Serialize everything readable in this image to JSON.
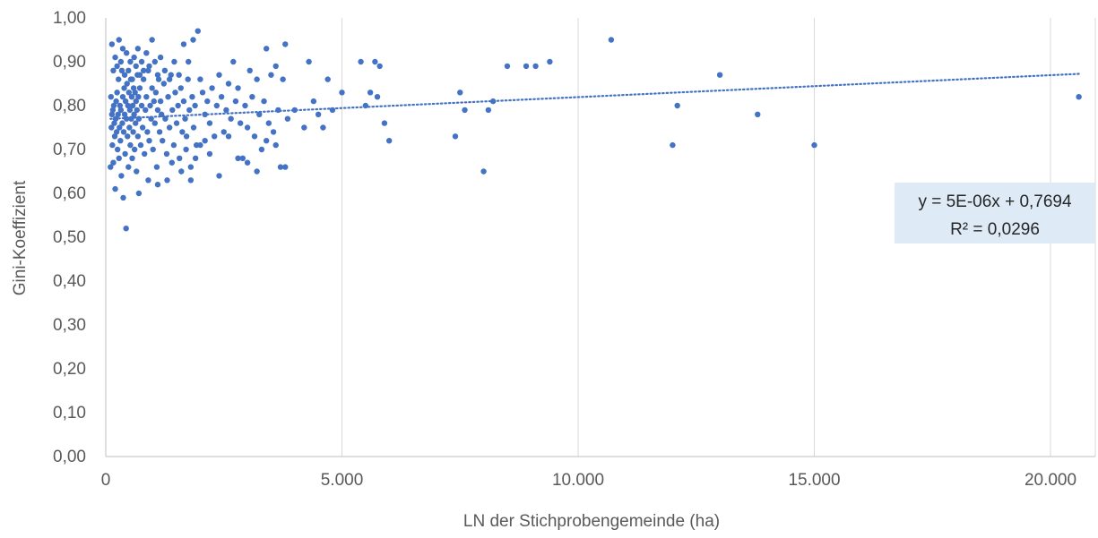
{
  "chart_data": {
    "type": "scatter",
    "title": "",
    "xlabel": "LN der Stichprobengemeinde (ha)",
    "ylabel": "Gini-Koeffizient",
    "xlim": [
      0,
      20000
    ],
    "ylim": [
      0,
      1
    ],
    "x_ticks": [
      {
        "value": 0,
        "label": "0"
      },
      {
        "value": 5000,
        "label": "5.000"
      },
      {
        "value": 10000,
        "label": "10.000"
      },
      {
        "value": 15000,
        "label": "15.000"
      },
      {
        "value": 20000,
        "label": "20.000"
      }
    ],
    "y_ticks": [
      {
        "value": 0.0,
        "label": "0,00"
      },
      {
        "value": 0.1,
        "label": "0,10"
      },
      {
        "value": 0.2,
        "label": "0,20"
      },
      {
        "value": 0.3,
        "label": "0,30"
      },
      {
        "value": 0.4,
        "label": "0,40"
      },
      {
        "value": 0.5,
        "label": "0,50"
      },
      {
        "value": 0.6,
        "label": "0,60"
      },
      {
        "value": 0.7,
        "label": "0,70"
      },
      {
        "value": 0.8,
        "label": "0,80"
      },
      {
        "value": 0.9,
        "label": "0,90"
      },
      {
        "value": 1.0,
        "label": "1,00"
      }
    ],
    "grid": "vertical",
    "marker_color": "#4472C4",
    "trendline": {
      "type": "linear",
      "slope": 5e-06,
      "intercept": 0.7694,
      "x_range": [
        100,
        20600
      ],
      "style": "dotted",
      "color": "#4472C4",
      "equation_label": "y = 5E-06x + 0,7694",
      "r2_label": "R² = 0,0296"
    },
    "points": [
      [
        100,
        0.66
      ],
      [
        110,
        0.82
      ],
      [
        120,
        0.75
      ],
      [
        130,
        0.78
      ],
      [
        140,
        0.71
      ],
      [
        150,
        0.79
      ],
      [
        160,
        0.67
      ],
      [
        170,
        0.8
      ],
      [
        180,
        0.76
      ],
      [
        190,
        0.73
      ],
      [
        200,
        0.61
      ],
      [
        210,
        0.77
      ],
      [
        220,
        0.81
      ],
      [
        230,
        0.74
      ],
      [
        240,
        0.83
      ],
      [
        250,
        0.7
      ],
      [
        260,
        0.78
      ],
      [
        270,
        0.86
      ],
      [
        280,
        0.68
      ],
      [
        290,
        0.75
      ],
      [
        300,
        0.8
      ],
      [
        310,
        0.72
      ],
      [
        320,
        0.79
      ],
      [
        330,
        0.64
      ],
      [
        340,
        0.88
      ],
      [
        350,
        0.76
      ],
      [
        360,
        0.82
      ],
      [
        370,
        0.59
      ],
      [
        380,
        0.74
      ],
      [
        390,
        0.84
      ],
      [
        400,
        0.78
      ],
      [
        410,
        0.69
      ],
      [
        420,
        0.81
      ],
      [
        430,
        0.52
      ],
      [
        440,
        0.77
      ],
      [
        450,
        0.85
      ],
      [
        460,
        0.73
      ],
      [
        470,
        0.8
      ],
      [
        480,
        0.66
      ],
      [
        490,
        0.83
      ],
      [
        500,
        0.75
      ],
      [
        510,
        0.79
      ],
      [
        520,
        0.71
      ],
      [
        530,
        0.86
      ],
      [
        540,
        0.77
      ],
      [
        550,
        0.82
      ],
      [
        560,
        0.68
      ],
      [
        570,
        0.8
      ],
      [
        580,
        0.74
      ],
      [
        590,
        0.84
      ],
      [
        600,
        0.78
      ],
      [
        610,
        0.7
      ],
      [
        620,
        0.83
      ],
      [
        630,
        0.76
      ],
      [
        640,
        0.81
      ],
      [
        650,
        0.65
      ],
      [
        660,
        0.79
      ],
      [
        670,
        0.87
      ],
      [
        680,
        0.73
      ],
      [
        690,
        0.82
      ],
      [
        700,
        0.77
      ],
      [
        720,
        0.84
      ],
      [
        740,
        0.71
      ],
      [
        760,
        0.8
      ],
      [
        780,
        0.75
      ],
      [
        800,
        0.86
      ],
      [
        820,
        0.69
      ],
      [
        840,
        0.79
      ],
      [
        860,
        0.82
      ],
      [
        880,
        0.74
      ],
      [
        900,
        0.88
      ],
      [
        920,
        0.72
      ],
      [
        940,
        0.8
      ],
      [
        960,
        0.77
      ],
      [
        980,
        0.84
      ],
      [
        1000,
        0.7
      ],
      [
        1020,
        0.81
      ],
      [
        1040,
        0.76
      ],
      [
        1060,
        0.83
      ],
      [
        1080,
        0.66
      ],
      [
        1100,
        0.79
      ],
      [
        1120,
        0.86
      ],
      [
        1140,
        0.74
      ],
      [
        1160,
        0.81
      ],
      [
        1180,
        0.78
      ],
      [
        1200,
        0.72
      ],
      [
        1230,
        0.85
      ],
      [
        1260,
        0.77
      ],
      [
        1290,
        0.69
      ],
      [
        1320,
        0.82
      ],
      [
        1350,
        0.75
      ],
      [
        1380,
        0.87
      ],
      [
        1410,
        0.79
      ],
      [
        1440,
        0.71
      ],
      [
        1470,
        0.83
      ],
      [
        1500,
        0.76
      ],
      [
        1530,
        0.8
      ],
      [
        1560,
        0.68
      ],
      [
        1590,
        0.84
      ],
      [
        1620,
        0.74
      ],
      [
        1650,
        0.81
      ],
      [
        1680,
        0.77
      ],
      [
        1710,
        0.73
      ],
      [
        1740,
        0.86
      ],
      [
        1770,
        0.79
      ],
      [
        1800,
        0.66
      ],
      [
        1830,
        0.82
      ],
      [
        1860,
        0.75
      ],
      [
        1890,
        0.8
      ],
      [
        1920,
        0.71
      ],
      [
        130,
        0.94
      ],
      [
        160,
        0.88
      ],
      [
        200,
        0.91
      ],
      [
        240,
        0.89
      ],
      [
        280,
        0.95
      ],
      [
        320,
        0.9
      ],
      [
        360,
        0.93
      ],
      [
        400,
        0.87
      ],
      [
        440,
        0.92
      ],
      [
        480,
        0.88
      ],
      [
        520,
        0.9
      ],
      [
        560,
        0.86
      ],
      [
        600,
        0.91
      ],
      [
        640,
        0.89
      ],
      [
        680,
        0.93
      ],
      [
        720,
        0.87
      ],
      [
        760,
        0.9
      ],
      [
        800,
        0.88
      ],
      [
        860,
        0.92
      ],
      [
        920,
        0.89
      ],
      [
        980,
        0.95
      ],
      [
        1040,
        0.9
      ],
      [
        1100,
        0.87
      ],
      [
        1160,
        0.91
      ],
      [
        1250,
        0.88
      ],
      [
        1350,
        0.86
      ],
      [
        1450,
        0.9
      ],
      [
        1550,
        0.87
      ],
      [
        1650,
        0.94
      ],
      [
        1750,
        0.9
      ],
      [
        1850,
        0.95
      ],
      [
        1950,
        0.97
      ],
      [
        2000,
        0.86
      ],
      [
        2050,
        0.83
      ],
      [
        2100,
        0.78
      ],
      [
        2150,
        0.81
      ],
      [
        2200,
        0.76
      ],
      [
        2250,
        0.84
      ],
      [
        2300,
        0.73
      ],
      [
        2350,
        0.8
      ],
      [
        2400,
        0.87
      ],
      [
        2450,
        0.82
      ],
      [
        2500,
        0.74
      ],
      [
        2550,
        0.79
      ],
      [
        2600,
        0.85
      ],
      [
        2650,
        0.77
      ],
      [
        2700,
        0.9
      ],
      [
        2750,
        0.81
      ],
      [
        2800,
        0.84
      ],
      [
        2850,
        0.76
      ],
      [
        2900,
        0.68
      ],
      [
        2950,
        0.8
      ],
      [
        3000,
        0.75
      ],
      [
        3050,
        0.88
      ],
      [
        3100,
        0.82
      ],
      [
        3150,
        0.73
      ],
      [
        3200,
        0.86
      ],
      [
        3250,
        0.78
      ],
      [
        3300,
        0.7
      ],
      [
        3350,
        0.81
      ],
      [
        3400,
        0.93
      ],
      [
        3450,
        0.76
      ],
      [
        3500,
        0.87
      ],
      [
        3550,
        0.74
      ],
      [
        3600,
        0.89
      ],
      [
        3650,
        0.79
      ],
      [
        3700,
        0.66
      ],
      [
        3750,
        0.86
      ],
      [
        3800,
        0.94
      ],
      [
        3850,
        0.77
      ],
      [
        1300,
        0.63
      ],
      [
        1600,
        0.65
      ],
      [
        1800,
        0.63
      ],
      [
        2000,
        0.71
      ],
      [
        2200,
        0.69
      ],
      [
        2400,
        0.64
      ],
      [
        2600,
        0.73
      ],
      [
        2800,
        0.68
      ],
      [
        3000,
        0.67
      ],
      [
        3200,
        0.65
      ],
      [
        3400,
        0.72
      ],
      [
        3600,
        0.71
      ],
      [
        3800,
        0.66
      ],
      [
        700,
        0.6
      ],
      [
        900,
        0.63
      ],
      [
        1100,
        0.62
      ],
      [
        1400,
        0.67
      ],
      [
        1700,
        0.7
      ],
      [
        1900,
        0.68
      ],
      [
        2100,
        0.72
      ],
      [
        4000,
        0.79
      ],
      [
        4200,
        0.75
      ],
      [
        4300,
        0.9
      ],
      [
        4400,
        0.81
      ],
      [
        4500,
        0.78
      ],
      [
        4600,
        0.75
      ],
      [
        4700,
        0.86
      ],
      [
        4800,
        0.79
      ],
      [
        5000,
        0.83
      ],
      [
        5400,
        0.9
      ],
      [
        5500,
        0.8
      ],
      [
        5600,
        0.83
      ],
      [
        5700,
        0.9
      ],
      [
        5750,
        0.82
      ],
      [
        5800,
        0.89
      ],
      [
        5900,
        0.76
      ],
      [
        6000,
        0.72
      ],
      [
        7400,
        0.73
      ],
      [
        7500,
        0.83
      ],
      [
        7600,
        0.79
      ],
      [
        8000,
        0.65
      ],
      [
        8100,
        0.79
      ],
      [
        8200,
        0.81
      ],
      [
        8500,
        0.89
      ],
      [
        8900,
        0.89
      ],
      [
        9100,
        0.89
      ],
      [
        9400,
        0.9
      ],
      [
        10700,
        0.95
      ],
      [
        12000,
        0.71
      ],
      [
        12100,
        0.8
      ],
      [
        13000,
        0.87
      ],
      [
        13800,
        0.78
      ],
      [
        15000,
        0.71
      ],
      [
        20600,
        0.82
      ]
    ]
  }
}
